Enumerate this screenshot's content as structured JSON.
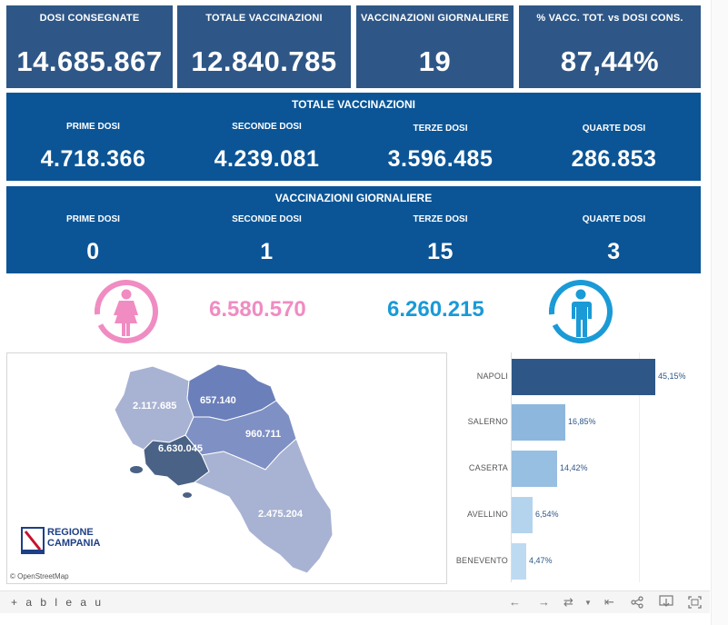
{
  "kpis": [
    {
      "label": "DOSI CONSEGNATE",
      "value": "14.685.867"
    },
    {
      "label": "TOTALE VACCINAZIONI",
      "value": "12.840.785"
    },
    {
      "label": "VACCINAZIONI GIORNALIERE",
      "value": "19"
    },
    {
      "label": "% VACC. TOT. vs DOSI CONS.",
      "value": "87,44%"
    }
  ],
  "totale": {
    "title": "TOTALE VACCINAZIONI",
    "cols": [
      {
        "label": "PRIME DOSI",
        "value": "4.718.366"
      },
      {
        "label": "SECONDE DOSI",
        "value": "4.239.081"
      },
      {
        "label": "TERZE DOSI",
        "value": "3.596.485"
      },
      {
        "label": "QUARTE DOSI",
        "value": "286.853"
      }
    ]
  },
  "giornaliere": {
    "title": "VACCINAZIONI GIORNALIERE",
    "cols": [
      {
        "label": "PRIME DOSI",
        "value": "0"
      },
      {
        "label": "SECONDE DOSI",
        "value": "1"
      },
      {
        "label": "TERZE DOSI",
        "value": "15"
      },
      {
        "label": "QUARTE DOSI",
        "value": "3"
      }
    ]
  },
  "gender": {
    "female_value": "6.580.570",
    "male_value": "6.260.215",
    "female_color": "#f08cc2",
    "male_color": "#1a9ad6",
    "female_icon": "female-icon",
    "male_icon": "male-icon"
  },
  "map": {
    "labels": {
      "caserta": "2.117.685",
      "benevento": "657.140",
      "napoli": "6.630.045",
      "avellino": "960.711",
      "salerno": "2.475.204"
    },
    "logo_line1": "REGIONE",
    "logo_line2": "CAMPANIA",
    "attribution": "© OpenStreetMap"
  },
  "chart_data": {
    "type": "bar",
    "orientation": "horizontal",
    "categories": [
      "NAPOLI",
      "SALERNO",
      "CASERTA",
      "AVELLINO",
      "BENEVENTO"
    ],
    "values": [
      45.15,
      16.85,
      14.42,
      6.54,
      4.47
    ],
    "value_labels": [
      "45,15%",
      "16,85%",
      "14,42%",
      "6,54%",
      "4,47%"
    ],
    "colors": [
      "#2e5787",
      "#8eb7dd",
      "#97bfe1",
      "#b4d4ee",
      "#bedaf1"
    ]
  },
  "footer": {
    "brand": "+ a b l e a u",
    "controls": [
      "←",
      "→",
      "⇄",
      "⇤",
      "share-icon",
      "download-icon",
      "fullscreen-icon"
    ]
  }
}
